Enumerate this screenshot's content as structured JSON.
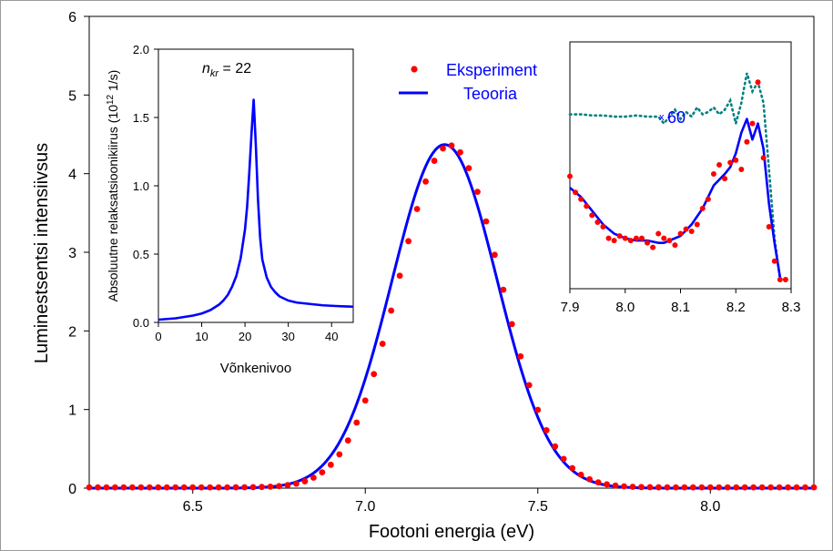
{
  "chart_data": [
    {
      "id": "main",
      "type": "scatter",
      "xlabel": "Footoni energia (eV)",
      "ylabel": "Luminestsentsi intensiivsus",
      "xlim": [
        6.2,
        8.3
      ],
      "ylim": [
        0,
        6
      ],
      "xticks": [
        6.5,
        7.0,
        7.5,
        8.0
      ],
      "xtick_labels": [
        "6.5",
        "7.0",
        "7.5",
        "8.0"
      ],
      "yticks": [
        0,
        1,
        2,
        3,
        4,
        5,
        6
      ],
      "ytick_labels": [
        "0",
        "1",
        "2",
        "3",
        "4",
        "5",
        "6"
      ],
      "grid": false,
      "legend": {
        "placement": "top-center",
        "entries": [
          "Eksperiment",
          "Teooria"
        ]
      },
      "series": [
        {
          "name": "Eksperiment",
          "marker": "dot",
          "color": "#ff0000",
          "gaussian_model": {
            "peak": 4.36,
            "center": 7.245,
            "sigma": 0.148,
            "baseline": 0.01,
            "x_start": 6.2,
            "x_end": 8.3,
            "step": 0.025
          }
        },
        {
          "name": "Teooria",
          "marker": "line",
          "color": "#0000ff",
          "gaussian_model": {
            "peak": 4.37,
            "center": 7.23,
            "sigma": 0.152,
            "baseline": 0.0,
            "x_start": 6.2,
            "x_end": 8.3,
            "step": 0.005
          }
        }
      ]
    },
    {
      "id": "inset_left",
      "type": "line",
      "xlabel": "Võnkenivoo",
      "ylabel": "Absoluutne relaksatsioonikiirus (10",
      "ylabel_sup": "12",
      "ylabel_tail": " 1/s)",
      "annotation_n": "n",
      "annotation_sub": "kr",
      "annotation_value": " = 22",
      "xlim": [
        0,
        45
      ],
      "ylim": [
        0,
        2.0
      ],
      "xticks": [
        0,
        10,
        20,
        30,
        40
      ],
      "xtick_labels": [
        "0",
        "10",
        "20",
        "30",
        "40"
      ],
      "yticks": [
        0,
        0.5,
        1.0,
        1.5,
        2.0
      ],
      "ytick_labels": [
        "0.0",
        "0.5",
        "1.0",
        "1.5",
        "2.0"
      ],
      "series": [
        {
          "color": "#0000ff",
          "x": [
            0,
            2,
            4,
            6,
            8,
            10,
            12,
            14,
            15,
            16,
            17,
            18,
            19,
            20,
            20.5,
            21,
            21.5,
            22,
            22.5,
            23,
            23.5,
            24,
            25,
            26,
            27,
            28,
            30,
            32,
            35,
            38,
            41,
            45
          ],
          "y": [
            0.02,
            0.025,
            0.03,
            0.04,
            0.05,
            0.065,
            0.09,
            0.13,
            0.16,
            0.2,
            0.26,
            0.34,
            0.47,
            0.68,
            0.85,
            1.1,
            1.38,
            1.63,
            1.3,
            0.9,
            0.62,
            0.46,
            0.33,
            0.26,
            0.22,
            0.19,
            0.16,
            0.145,
            0.135,
            0.125,
            0.12,
            0.115
          ]
        }
      ]
    },
    {
      "id": "inset_right",
      "type": "scatter",
      "xlim": [
        7.9,
        8.3
      ],
      "xticks": [
        7.9,
        8.0,
        8.1,
        8.2,
        8.3
      ],
      "xtick_labels": [
        "7.9",
        "8.0",
        "8.1",
        "8.2",
        "8.3"
      ],
      "ylim": [
        0,
        1
      ],
      "annotation": "60",
      "annotation_prefix": "x",
      "series": [
        {
          "name": "dotted",
          "color": "#008080",
          "x": [
            7.9,
            7.92,
            7.94,
            7.96,
            7.98,
            8.0,
            8.02,
            8.04,
            8.06,
            8.07,
            8.08,
            8.09,
            8.1,
            8.11,
            8.12,
            8.13,
            8.14,
            8.15,
            8.16,
            8.17,
            8.18,
            8.19,
            8.2,
            8.21,
            8.22,
            8.23,
            8.24,
            8.25,
            8.26,
            8.27,
            8.28
          ],
          "y": [
            0.74,
            0.74,
            0.735,
            0.735,
            0.73,
            0.73,
            0.735,
            0.73,
            0.73,
            0.7,
            0.73,
            0.76,
            0.72,
            0.75,
            0.73,
            0.77,
            0.74,
            0.75,
            0.77,
            0.74,
            0.76,
            0.8,
            0.7,
            0.79,
            0.92,
            0.84,
            0.88,
            0.79,
            0.5,
            0.2,
            0.02
          ]
        },
        {
          "name": "blue",
          "color": "#0000ff",
          "x": [
            7.9,
            7.92,
            7.94,
            7.96,
            7.98,
            8.0,
            8.02,
            8.04,
            8.06,
            8.07,
            8.08,
            8.1,
            8.12,
            8.14,
            8.16,
            8.18,
            8.19,
            8.2,
            8.21,
            8.22,
            8.23,
            8.24,
            8.25,
            8.26,
            8.27,
            8.28
          ],
          "y": [
            0.42,
            0.38,
            0.32,
            0.26,
            0.22,
            0.2,
            0.19,
            0.19,
            0.18,
            0.18,
            0.19,
            0.21,
            0.26,
            0.33,
            0.43,
            0.48,
            0.51,
            0.57,
            0.66,
            0.72,
            0.63,
            0.7,
            0.59,
            0.35,
            0.18,
            0.03
          ]
        },
        {
          "name": "red",
          "color": "#ff0000",
          "x": [
            7.9,
            7.91,
            7.92,
            7.93,
            7.94,
            7.95,
            7.96,
            7.97,
            7.98,
            7.99,
            8.0,
            8.01,
            8.02,
            8.03,
            8.04,
            8.05,
            8.06,
            8.07,
            8.08,
            8.09,
            8.1,
            8.11,
            8.12,
            8.13,
            8.14,
            8.15,
            8.16,
            8.17,
            8.18,
            8.19,
            8.2,
            8.21,
            8.22,
            8.23,
            8.24,
            8.25,
            8.26,
            8.27,
            8.28,
            8.29
          ],
          "y": [
            0.47,
            0.4,
            0.37,
            0.34,
            0.3,
            0.27,
            0.25,
            0.2,
            0.19,
            0.21,
            0.2,
            0.19,
            0.2,
            0.2,
            0.18,
            0.16,
            0.22,
            0.2,
            0.19,
            0.17,
            0.22,
            0.24,
            0.23,
            0.26,
            0.33,
            0.37,
            0.48,
            0.52,
            0.46,
            0.53,
            0.54,
            0.5,
            0.62,
            0.7,
            0.88,
            0.55,
            0.25,
            0.1,
            0.02,
            0.02
          ]
        }
      ]
    }
  ]
}
